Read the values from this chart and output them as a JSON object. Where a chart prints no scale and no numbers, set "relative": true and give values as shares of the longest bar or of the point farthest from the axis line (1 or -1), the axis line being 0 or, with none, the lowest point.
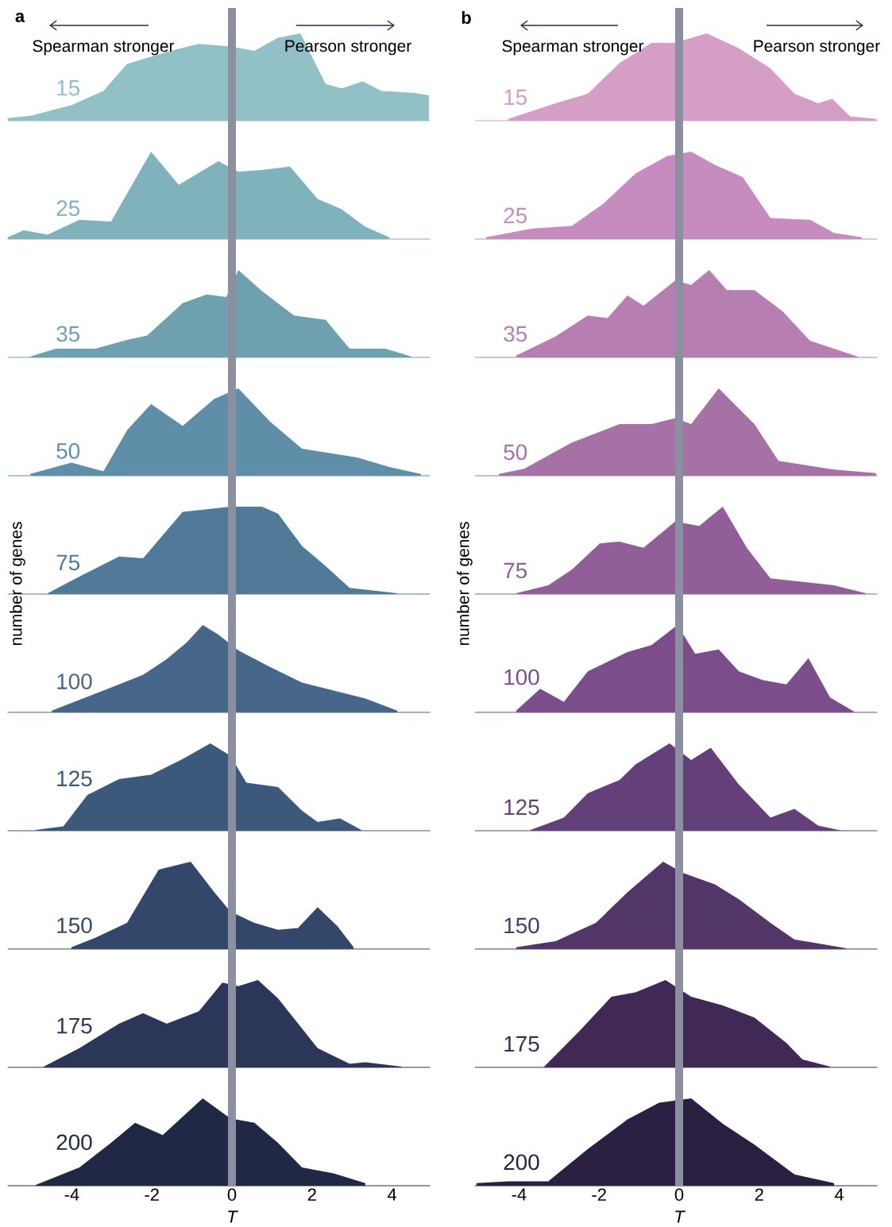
{
  "chart_data": [
    {
      "type": "area",
      "title": "15",
      "relative": true,
      "color": "#91c1c6",
      "xlim": [
        -5.6,
        4.95
      ],
      "xticks": [
        -4,
        -2,
        0,
        2,
        4
      ],
      "tick_labels": false,
      "ref_lines": [
        {
          "axis": "x",
          "value": 0,
          "color": "#8c8fa0"
        }
      ],
      "annotations": [
        "a",
        "Spearman stronger",
        "Pearson stronger"
      ],
      "x": [
        -5.6,
        -5.0,
        -4.0,
        -3.21,
        -2.62,
        -1.53,
        -0.83,
        -0.04,
        0.56,
        1.15,
        1.71,
        2.34,
        2.74,
        3.27,
        3.73,
        4.52,
        4.92
      ],
      "values": [
        0.03,
        0.06,
        0.18,
        0.34,
        0.65,
        0.8,
        0.88,
        0.85,
        0.8,
        0.95,
        1,
        0.42,
        0.37,
        0.45,
        0.34,
        0.32,
        0.29
      ]
    },
    {
      "type": "area",
      "title": "25",
      "relative": true,
      "color": "#7fb2bb",
      "xlim": [
        -5.6,
        4.95
      ],
      "xticks": [
        -4,
        -2,
        0,
        2,
        4
      ],
      "tick_labels": false,
      "ref_lines": [
        {
          "axis": "x",
          "value": 0,
          "color": "#8c8fa0"
        }
      ],
      "x": [
        -5.6,
        -5.2,
        -4.6,
        -3.81,
        -3.02,
        -2.52,
        -2.02,
        -1.33,
        -0.34,
        0.16,
        0.75,
        1.45,
        2.14,
        2.74,
        3.33,
        3.93
      ],
      "values": [
        0.02,
        0.1,
        0.05,
        0.22,
        0.2,
        0.6,
        1,
        0.62,
        0.89,
        0.77,
        0.79,
        0.83,
        0.46,
        0.34,
        0.14,
        0.02
      ]
    },
    {
      "type": "area",
      "title": "35",
      "relative": true,
      "color": "#6fa0b0",
      "xlim": [
        -5.6,
        4.95
      ],
      "xticks": [
        -4,
        -2,
        0,
        2,
        4
      ],
      "tick_labels": false,
      "ref_lines": [
        {
          "axis": "x",
          "value": 0,
          "color": "#8c8fa0"
        }
      ],
      "x": [
        -5.04,
        -4.4,
        -3.41,
        -2.62,
        -2.12,
        -1.23,
        -0.63,
        -0.14,
        0.16,
        0.75,
        1.55,
        2.34,
        2.94,
        3.83,
        4.48
      ],
      "values": [
        0.01,
        0.1,
        0.1,
        0.2,
        0.25,
        0.62,
        0.72,
        0.69,
        1,
        0.76,
        0.48,
        0.43,
        0.1,
        0.1,
        0.01
      ]
    },
    {
      "type": "area",
      "title": "50",
      "relative": true,
      "color": "#5f8fa8",
      "xlim": [
        -5.6,
        4.95
      ],
      "xticks": [
        -4,
        -2,
        0,
        2,
        4
      ],
      "tick_labels": false,
      "ref_lines": [
        {
          "axis": "x",
          "value": 0,
          "color": "#8c8fa0"
        }
      ],
      "x": [
        -5.04,
        -4.01,
        -3.21,
        -2.62,
        -2.02,
        -1.23,
        -0.44,
        0.16,
        0.95,
        1.75,
        3.13,
        3.93,
        4.72
      ],
      "values": [
        0.02,
        0.15,
        0.05,
        0.52,
        0.82,
        0.57,
        0.88,
        1,
        0.62,
        0.31,
        0.21,
        0.1,
        0.02
      ]
    },
    {
      "type": "area",
      "title": "75",
      "relative": true,
      "color": "#517a99",
      "xlim": [
        -5.6,
        4.95
      ],
      "xticks": [
        -4,
        -2,
        0,
        2,
        4
      ],
      "tick_labels": false,
      "ylabel": "number of genes",
      "ref_lines": [
        {
          "axis": "x",
          "value": 0,
          "color": "#8c8fa0"
        }
      ],
      "x": [
        -4.6,
        -3.81,
        -2.82,
        -2.22,
        -1.23,
        -0.63,
        -0.04,
        0.75,
        1.15,
        1.75,
        2.34,
        2.94,
        4.13
      ],
      "values": [
        0.01,
        0.2,
        0.43,
        0.41,
        0.94,
        0.97,
        1,
        1,
        0.92,
        0.55,
        0.32,
        0.07,
        0.01
      ]
    },
    {
      "type": "area",
      "title": "100",
      "relative": true,
      "color": "#46668a",
      "xlim": [
        -5.6,
        4.95
      ],
      "xticks": [
        -4,
        -2,
        0,
        2,
        4
      ],
      "tick_labels": false,
      "ref_lines": [
        {
          "axis": "x",
          "value": 0,
          "color": "#8c8fa0"
        }
      ],
      "x": [
        -4.5,
        -3.21,
        -2.22,
        -1.63,
        -1.13,
        -0.73,
        -0.34,
        0.16,
        0.95,
        1.75,
        3.33,
        4.13
      ],
      "values": [
        0.02,
        0.25,
        0.43,
        0.61,
        0.8,
        1,
        0.89,
        0.71,
        0.52,
        0.34,
        0.16,
        0.02
      ]
    },
    {
      "type": "area",
      "title": "125",
      "relative": true,
      "color": "#3c587b",
      "xlim": [
        -5.6,
        4.95
      ],
      "xticks": [
        -4,
        -2,
        0,
        2,
        4
      ],
      "tick_labels": false,
      "ref_lines": [
        {
          "axis": "x",
          "value": 0,
          "color": "#8c8fa0"
        }
      ],
      "x": [
        -4.9,
        -4.21,
        -3.61,
        -2.82,
        -2.02,
        -1.23,
        -0.54,
        -0.04,
        0.36,
        1.15,
        1.75,
        2.14,
        2.7,
        3.23
      ],
      "values": [
        0.01,
        0.05,
        0.41,
        0.59,
        0.64,
        0.82,
        1,
        0.86,
        0.55,
        0.5,
        0.23,
        0.1,
        0.14,
        0.01
      ]
    },
    {
      "type": "area",
      "title": "150",
      "relative": true,
      "color": "#33476a",
      "xlim": [
        -5.6,
        4.95
      ],
      "xticks": [
        -4,
        -2,
        0,
        2,
        4
      ],
      "tick_labels": false,
      "ref_lines": [
        {
          "axis": "x",
          "value": 0,
          "color": "#8c8fa0"
        }
      ],
      "x": [
        -4.01,
        -3.41,
        -2.62,
        -1.83,
        -1.03,
        -0.44,
        -0.04,
        0.56,
        1.15,
        1.65,
        2.14,
        2.64,
        3.04
      ],
      "values": [
        0.02,
        0.13,
        0.3,
        0.91,
        1,
        0.65,
        0.43,
        0.3,
        0.22,
        0.24,
        0.48,
        0.26,
        0.02
      ]
    },
    {
      "type": "area",
      "title": "175",
      "relative": true,
      "color": "#2b3658",
      "xlim": [
        -5.6,
        4.95
      ],
      "xticks": [
        -4,
        -2,
        0,
        2,
        4
      ],
      "tick_labels": false,
      "ref_lines": [
        {
          "axis": "x",
          "value": 0,
          "color": "#8c8fa0"
        }
      ],
      "x": [
        -4.7,
        -3.81,
        -2.82,
        -2.22,
        -1.63,
        -0.83,
        -0.24,
        0.16,
        0.65,
        1.15,
        2.14,
        2.94,
        3.33,
        4.23
      ],
      "values": [
        0.01,
        0.22,
        0.5,
        0.62,
        0.5,
        0.64,
        0.97,
        0.93,
        1,
        0.79,
        0.22,
        0.04,
        0.06,
        0.01
      ]
    },
    {
      "type": "area",
      "title": "200",
      "relative": true,
      "color": "#212845",
      "xlim": [
        -5.6,
        4.95
      ],
      "xticks": [
        -4,
        -2,
        0,
        2,
        4
      ],
      "tick_labels": "x",
      "xlabel": "T",
      "ref_lines": [
        {
          "axis": "x",
          "value": 0,
          "color": "#8c8fa0"
        }
      ],
      "x": [
        -4.9,
        -3.81,
        -3.02,
        -2.42,
        -1.73,
        -0.73,
        -0.04,
        0.56,
        1.15,
        1.75,
        2.54,
        3.33
      ],
      "values": [
        0.01,
        0.21,
        0.49,
        0.72,
        0.58,
        1,
        0.77,
        0.72,
        0.49,
        0.21,
        0.14,
        0.03
      ]
    },
    {
      "type": "area",
      "title": "15",
      "relative": true,
      "color": "#d49ec7",
      "xlim": [
        -5.1,
        4.95
      ],
      "xticks": [
        -4,
        -2,
        0,
        2,
        4
      ],
      "tick_labels": false,
      "ref_lines": [
        {
          "axis": "x",
          "value": 0,
          "color": "#8c8fa0"
        }
      ],
      "annotations": [
        "b",
        "Spearman stronger",
        "Pearson stronger"
      ],
      "x": [
        -4.27,
        -3.08,
        -2.28,
        -1.49,
        -0.69,
        -0.1,
        0.69,
        1.49,
        2.28,
        2.88,
        3.47,
        3.83,
        4.27,
        4.92
      ],
      "values": [
        0.02,
        0.2,
        0.31,
        0.66,
        0.89,
        0.89,
        1,
        0.83,
        0.6,
        0.31,
        0.2,
        0.25,
        0.05,
        0.02
      ]
    },
    {
      "type": "area",
      "title": "25",
      "relative": true,
      "color": "#c68bbf",
      "xlim": [
        -5.1,
        4.95
      ],
      "xticks": [
        -4,
        -2,
        0,
        2,
        4
      ],
      "tick_labels": false,
      "ref_lines": [
        {
          "axis": "x",
          "value": 0,
          "color": "#8c8fa0"
        }
      ],
      "x": [
        -4.82,
        -3.67,
        -2.68,
        -1.88,
        -1.09,
        -0.3,
        0.3,
        0.89,
        1.59,
        2.28,
        3.27,
        3.87,
        4.56
      ],
      "values": [
        0.02,
        0.12,
        0.15,
        0.41,
        0.75,
        0.95,
        1,
        0.85,
        0.71,
        0.24,
        0.22,
        0.07,
        0.02
      ]
    },
    {
      "type": "area",
      "title": "35",
      "relative": true,
      "color": "#b67eb1",
      "xlim": [
        -5.1,
        4.95
      ],
      "xticks": [
        -4,
        -2,
        0,
        2,
        4
      ],
      "tick_labels": false,
      "ref_lines": [
        {
          "axis": "x",
          "value": 0,
          "color": "#8c8fa0"
        }
      ],
      "x": [
        -4.07,
        -3.08,
        -2.28,
        -1.79,
        -1.29,
        -0.89,
        -0.1,
        0.3,
        0.75,
        1.19,
        1.88,
        2.58,
        3.27,
        4.46
      ],
      "values": [
        0.02,
        0.24,
        0.48,
        0.45,
        0.71,
        0.59,
        0.88,
        0.83,
        1,
        0.77,
        0.77,
        0.53,
        0.19,
        0.01
      ]
    },
    {
      "type": "area",
      "title": "50",
      "relative": true,
      "color": "#a672a5",
      "xlim": [
        -5.1,
        4.95
      ],
      "xticks": [
        -4,
        -2,
        0,
        2,
        4
      ],
      "tick_labels": false,
      "ref_lines": [
        {
          "axis": "x",
          "value": 0,
          "color": "#8c8fa0"
        }
      ],
      "x": [
        -4.5,
        -3.87,
        -2.68,
        -1.49,
        -0.69,
        -0.1,
        0.3,
        0.99,
        1.88,
        2.48,
        3.87,
        4.92
      ],
      "values": [
        0.02,
        0.08,
        0.38,
        0.59,
        0.59,
        0.66,
        0.59,
        1,
        0.59,
        0.17,
        0.07,
        0.03
      ]
    },
    {
      "type": "area",
      "title": "75",
      "relative": true,
      "color": "#925e99",
      "xlim": [
        -5.1,
        4.95
      ],
      "xticks": [
        -4,
        -2,
        0,
        2,
        4
      ],
      "tick_labels": false,
      "ylabel": "number of genes",
      "ref_lines": [
        {
          "axis": "x",
          "value": 0,
          "color": "#8c8fa0"
        }
      ],
      "x": [
        -4.07,
        -3.27,
        -2.68,
        -1.98,
        -1.49,
        -0.89,
        -0.1,
        0.5,
        1.09,
        1.69,
        2.28,
        3.87,
        4.66
      ],
      "values": [
        0.01,
        0.1,
        0.28,
        0.58,
        0.6,
        0.53,
        0.83,
        0.78,
        1,
        0.53,
        0.18,
        0.1,
        0.01
      ]
    },
    {
      "type": "area",
      "title": "100",
      "relative": true,
      "color": "#7b4e8b",
      "xlim": [
        -5.1,
        4.95
      ],
      "xticks": [
        -4,
        -2,
        0,
        2,
        4
      ],
      "tick_labels": false,
      "ref_lines": [
        {
          "axis": "x",
          "value": 0,
          "color": "#8c8fa0"
        }
      ],
      "x": [
        -4.07,
        -3.47,
        -2.88,
        -2.28,
        -1.29,
        -0.69,
        -0.04,
        0.4,
        0.99,
        1.49,
        2.08,
        2.68,
        3.23,
        3.77,
        4.37
      ],
      "values": [
        0.02,
        0.27,
        0.12,
        0.47,
        0.69,
        0.77,
        1,
        0.67,
        0.72,
        0.47,
        0.37,
        0.32,
        0.62,
        0.17,
        0.01
      ]
    },
    {
      "type": "area",
      "title": "125",
      "relative": true,
      "color": "#63407a",
      "xlim": [
        -5.1,
        4.95
      ],
      "xticks": [
        -4,
        -2,
        0,
        2,
        4
      ],
      "tick_labels": false,
      "ref_lines": [
        {
          "axis": "x",
          "value": 0,
          "color": "#8c8fa0"
        }
      ],
      "x": [
        -3.71,
        -2.88,
        -2.28,
        -1.49,
        -1.09,
        -0.24,
        0.3,
        0.79,
        1.49,
        2.28,
        2.88,
        3.47,
        4.07
      ],
      "values": [
        0.01,
        0.15,
        0.43,
        0.58,
        0.76,
        1,
        0.81,
        0.95,
        0.53,
        0.15,
        0.25,
        0.06,
        0
      ]
    },
    {
      "type": "area",
      "title": "150",
      "relative": true,
      "color": "#513667",
      "xlim": [
        -5.1,
        4.95
      ],
      "xticks": [
        -4,
        -2,
        0,
        2,
        4
      ],
      "tick_labels": false,
      "ref_lines": [
        {
          "axis": "x",
          "value": 0,
          "color": "#8c8fa0"
        }
      ],
      "x": [
        -4.07,
        -3.08,
        -2.08,
        -1.29,
        -0.4,
        0.1,
        0.89,
        1.49,
        2.28,
        2.88,
        4.17
      ],
      "values": [
        0.02,
        0.09,
        0.3,
        0.65,
        1,
        0.87,
        0.74,
        0.57,
        0.3,
        0.11,
        0.01
      ]
    },
    {
      "type": "area",
      "title": "175",
      "relative": true,
      "color": "#402a55",
      "xlim": [
        -5.1,
        4.95
      ],
      "xticks": [
        -4,
        -2,
        0,
        2,
        4
      ],
      "tick_labels": false,
      "ref_lines": [
        {
          "axis": "x",
          "value": 0,
          "color": "#8c8fa0"
        }
      ],
      "x": [
        -3.37,
        -2.48,
        -1.69,
        -1.09,
        -0.34,
        0.3,
        1.09,
        1.88,
        2.68,
        3.08,
        3.77
      ],
      "values": [
        0.01,
        0.42,
        0.81,
        0.86,
        1,
        0.81,
        0.71,
        0.57,
        0.28,
        0.09,
        0.01
      ]
    },
    {
      "type": "area",
      "title": "200",
      "relative": true,
      "color": "#2b1f42",
      "xlim": [
        -5.1,
        4.95
      ],
      "xticks": [
        -4,
        -2,
        0,
        2,
        4
      ],
      "tick_labels": "x",
      "xlabel": "T",
      "ref_lines": [
        {
          "axis": "x",
          "value": 0,
          "color": "#8c8fa0"
        }
      ],
      "x": [
        -5.06,
        -4.27,
        -3.27,
        -2.28,
        -1.29,
        -0.5,
        0.3,
        1.09,
        1.88,
        2.88,
        3.87
      ],
      "values": [
        0.03,
        0.05,
        0.05,
        0.42,
        0.76,
        0.95,
        1,
        0.71,
        0.47,
        0.13,
        0.03
      ]
    }
  ]
}
